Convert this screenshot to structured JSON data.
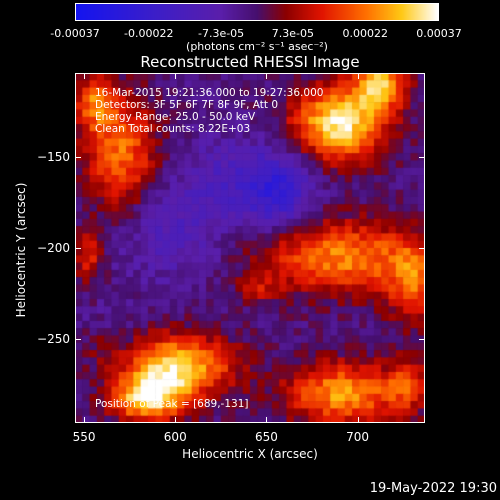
{
  "colorbar": {
    "tick_labels": [
      "-0.00037",
      "-0.00022",
      "-7.3e-05",
      "7.3e-05",
      "0.00022",
      "0.00037"
    ],
    "tick_values": [
      -0.00037,
      -0.00022,
      -7.3e-05,
      7.3e-05,
      0.00022,
      0.00037
    ],
    "range": [
      -0.00037,
      0.00037
    ],
    "unit": "(photons cm⁻² s⁻¹ asec⁻²)"
  },
  "info": {
    "time_range": "16-Mar-2015 19:21:36.000 to 19:27:36.000",
    "detectors": "Detectors: 3F 5F 6F 7F 8F 9F, Att 0",
    "energy_range": "Energy Range: 25.0 - 50.0 keV",
    "method_counts": "Clean     Total counts: 8.22E+03",
    "peak": "Position of Peak = [689,-131]"
  },
  "footer": "19-May-2022 19:30",
  "chart_data": {
    "type": "heatmap",
    "title": "Reconstructed RHESSI Image",
    "xlabel": "Heliocentric X (arcsec)",
    "ylabel": "Heliocentric Y (arcsec)",
    "xlim": [
      545,
      737
    ],
    "ylim": [
      -296,
      -104
    ],
    "xticks": [
      550,
      600,
      650,
      700
    ],
    "yticks": [
      -150,
      -200,
      -250
    ],
    "grid": false,
    "peak": [
      689,
      -131
    ],
    "colormap": "blue-purple-red-yellow-white",
    "sources": [
      {
        "x": 690,
        "y": -132,
        "amp": 0.00037,
        "sx": 18,
        "sy": 14
      },
      {
        "x": 712,
        "y": -110,
        "amp": 0.0003,
        "sx": 10,
        "sy": 10
      },
      {
        "x": 570,
        "y": -148,
        "amp": 0.00024,
        "sx": 14,
        "sy": 22
      },
      {
        "x": 555,
        "y": -120,
        "amp": 0.0002,
        "sx": 8,
        "sy": 10
      },
      {
        "x": 690,
        "y": -205,
        "amp": 0.00026,
        "sx": 32,
        "sy": 14
      },
      {
        "x": 730,
        "y": -220,
        "amp": 0.00018,
        "sx": 10,
        "sy": 16
      },
      {
        "x": 552,
        "y": -205,
        "amp": 0.00016,
        "sx": 6,
        "sy": 10
      },
      {
        "x": 600,
        "y": -265,
        "amp": 0.00034,
        "sx": 22,
        "sy": 12
      },
      {
        "x": 585,
        "y": -283,
        "amp": 0.00032,
        "sx": 14,
        "sy": 9
      },
      {
        "x": 692,
        "y": -280,
        "amp": 0.00028,
        "sx": 22,
        "sy": 12
      },
      {
        "x": 560,
        "y": -255,
        "amp": 0.0001,
        "sx": 10,
        "sy": 8
      },
      {
        "x": 645,
        "y": -222,
        "amp": 0.0001,
        "sx": 8,
        "sy": 6
      },
      {
        "x": 728,
        "y": -275,
        "amp": 0.00016,
        "sx": 8,
        "sy": 10
      },
      {
        "x": 655,
        "y": -168,
        "amp": -0.00022,
        "sx": 14,
        "sy": 16
      },
      {
        "x": 600,
        "y": -190,
        "amp": -0.0001,
        "sx": 22,
        "sy": 20
      },
      {
        "x": 625,
        "y": -160,
        "amp": -8e-05,
        "sx": 14,
        "sy": 14
      },
      {
        "x": 565,
        "y": -255,
        "amp": -8e-05,
        "sx": 12,
        "sy": 12
      }
    ]
  }
}
